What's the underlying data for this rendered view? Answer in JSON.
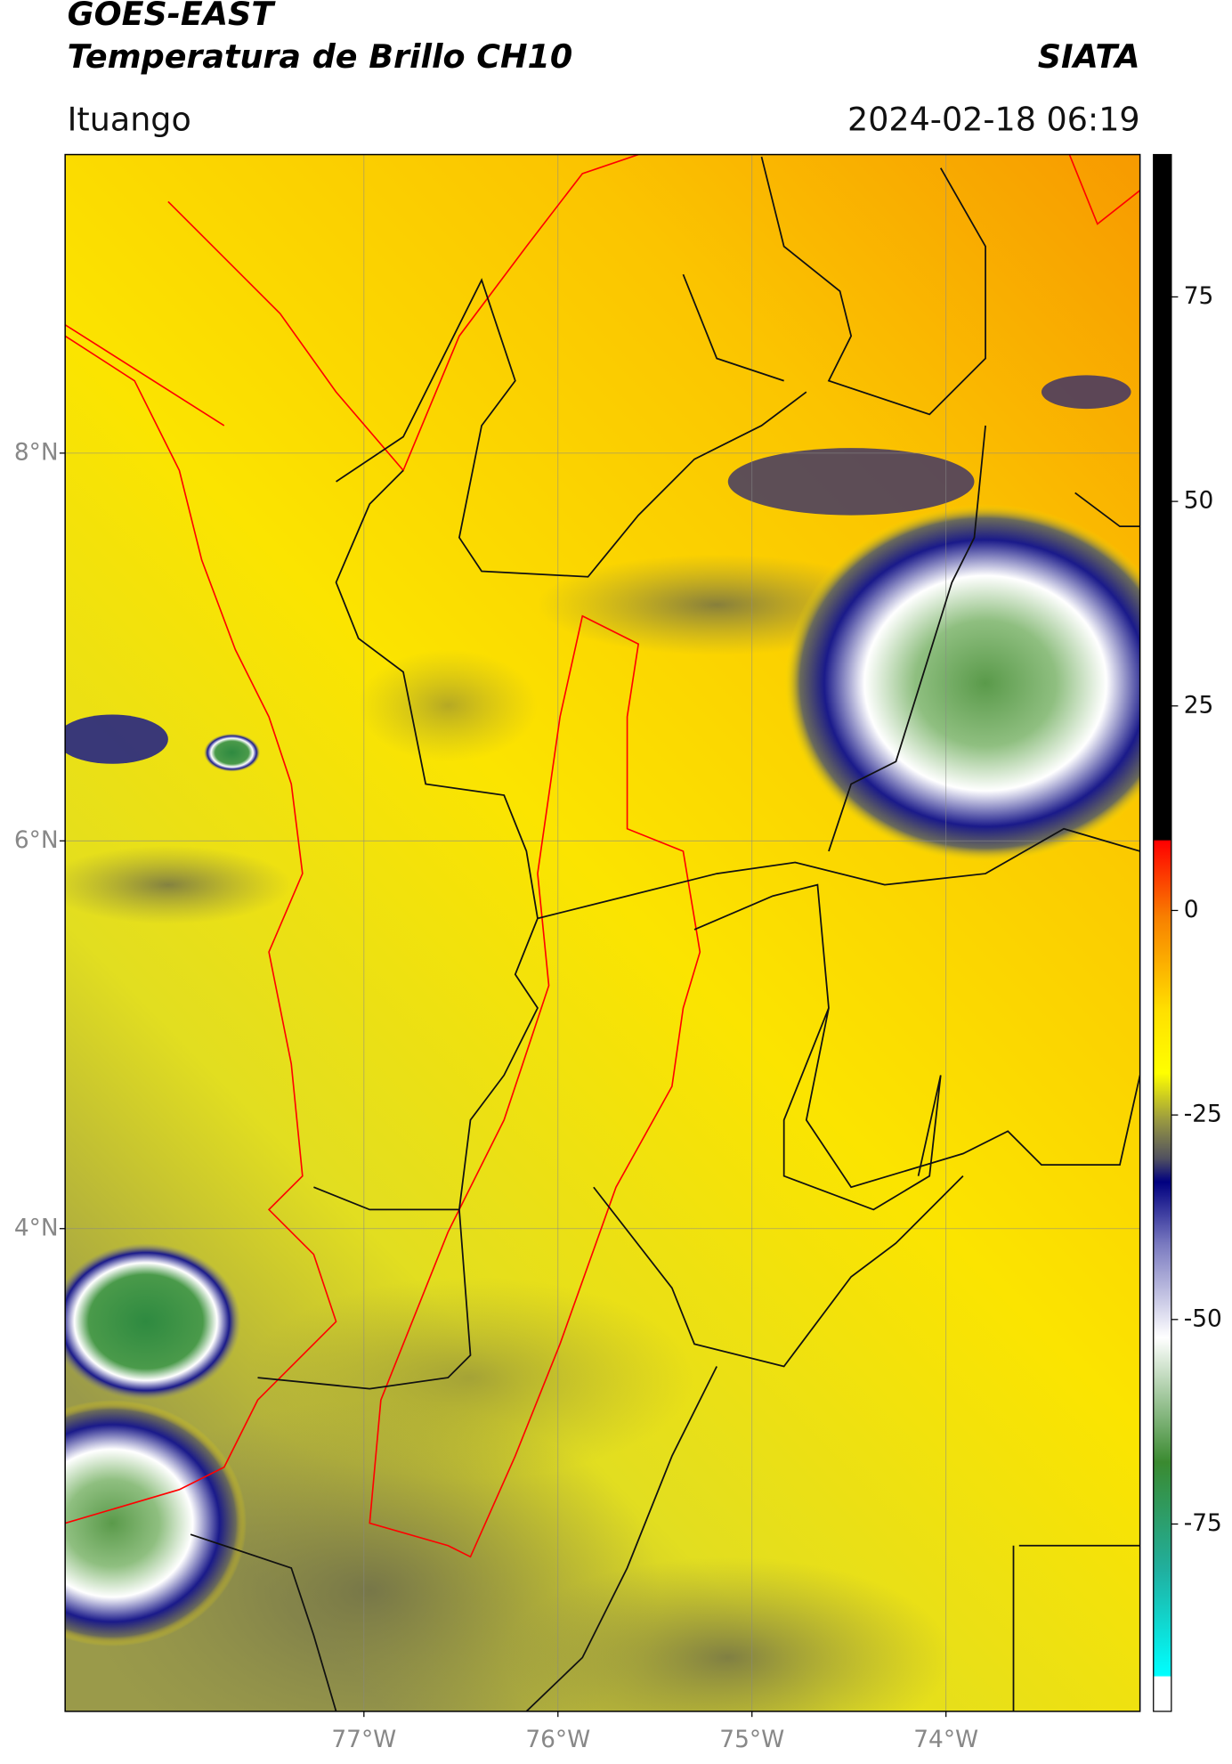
{
  "header": {
    "title": "GOES-EAST",
    "subtitle": "Temperatura de Brillo CH10",
    "brand": "SIATA",
    "location": "Ituango",
    "datetime": "2024-02-18 06:19"
  },
  "chart_data": {
    "type": "map",
    "xlim": [
      -78.54,
      -73.0
    ],
    "xticks": [
      {
        "value": -77,
        "label": "77°W"
      },
      {
        "value": -76,
        "label": "76°W"
      },
      {
        "value": -75,
        "label": "75°W"
      },
      {
        "value": -74,
        "label": "74°W"
      }
    ],
    "ylim": [
      1.51,
      9.54
    ],
    "yticks": [
      {
        "value": 8,
        "label": "8°N"
      },
      {
        "value": 6,
        "label": "6°N"
      },
      {
        "value": 4,
        "label": "4°N"
      }
    ],
    "grid": true,
    "colorbar": {
      "lim": [
        -97.9,
        92.4
      ],
      "ticks": [
        75,
        50,
        25,
        0,
        -25,
        -50,
        -75
      ]
    }
  }
}
